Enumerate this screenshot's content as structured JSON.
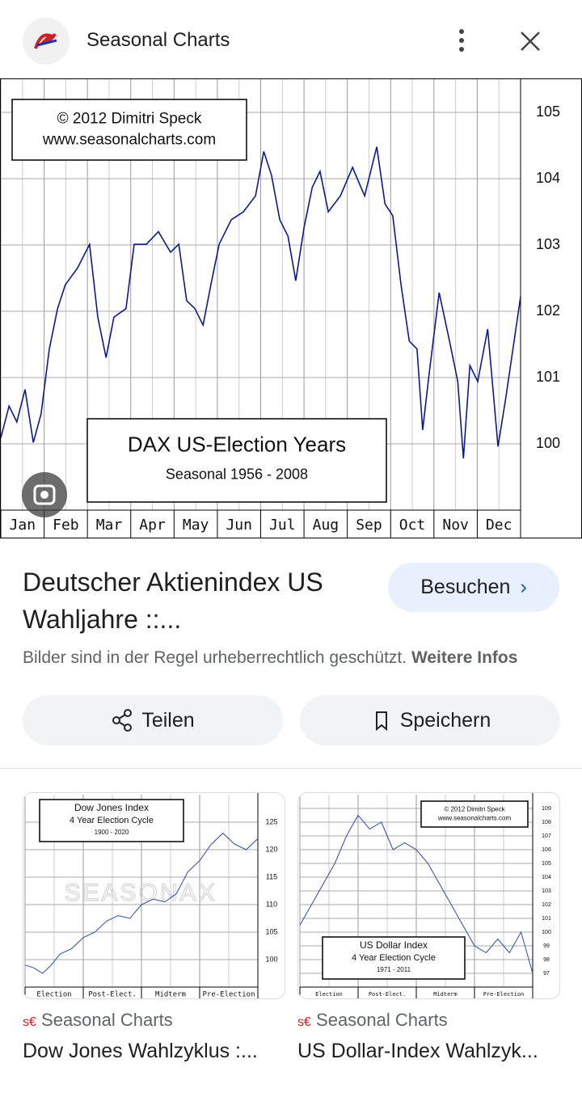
{
  "header": {
    "title": "Seasonal Charts"
  },
  "chart_data": [
    {
      "type": "line",
      "annotations": [
        "© 2012  Dimitri Speck",
        "www.seasonalcharts.com"
      ],
      "title": "DAX US-Election Years",
      "subtitle": "Seasonal 1956 - 2008",
      "categories": [
        "Jan",
        "Feb",
        "Mar",
        "Apr",
        "May",
        "Jun",
        "Jul",
        "Aug",
        "Sep",
        "Oct",
        "Nov",
        "Dec"
      ],
      "x": [
        0,
        0.19,
        0.37,
        0.56,
        0.75,
        0.93,
        1.12,
        1.31,
        1.49,
        1.77,
        2.05,
        2.24,
        2.43,
        2.61,
        2.89,
        3.08,
        3.36,
        3.64,
        3.92,
        4.11,
        4.29,
        4.48,
        4.67,
        4.85,
        5.04,
        5.32,
        5.6,
        5.88,
        6.07,
        6.25,
        6.44,
        6.63,
        6.81,
        7,
        7.19,
        7.37,
        7.56,
        7.84,
        8.12,
        8.4,
        8.68,
        8.87,
        9.05,
        9.24,
        9.43,
        9.61,
        9.74,
        9.89,
        10.12,
        10.36,
        10.55,
        10.68,
        10.83,
        11.01,
        11.24,
        11.48,
        11.66,
        11.85,
        12
      ],
      "values": [
        100.09,
        100.57,
        100.33,
        100.82,
        100.02,
        100.45,
        101.43,
        102.04,
        102.4,
        102.65,
        103.01,
        101.91,
        101.3,
        101.91,
        102.04,
        103.01,
        103.01,
        103.2,
        102.89,
        103.01,
        102.16,
        102.04,
        101.79,
        102.4,
        103.01,
        103.38,
        103.5,
        103.74,
        104.41,
        104.05,
        103.38,
        103.13,
        102.46,
        103.26,
        103.87,
        104.11,
        103.5,
        103.74,
        104.17,
        103.74,
        104.48,
        103.62,
        103.44,
        102.4,
        101.55,
        101.43,
        100.21,
        101.06,
        102.28,
        101.55,
        100.94,
        99.78,
        101.18,
        100.94,
        101.73,
        99.96,
        100.7,
        101.55,
        102.22
      ],
      "color": "#0a1a8c",
      "xlim": [
        0,
        12
      ],
      "ylim": [
        99,
        105.5
      ],
      "yticks": [
        100,
        101,
        102,
        103,
        104,
        105
      ],
      "grid": true
    },
    {
      "type": "line",
      "title": "Dow Jones Index",
      "subtitle": "4 Year Election Cycle",
      "note": "1900 - 2020",
      "watermark": "SEASONAX",
      "categories": [
        "Election",
        "Post-Elect.",
        "Midterm",
        "Pre-Election"
      ],
      "x": [
        0,
        0.15,
        0.3,
        0.45,
        0.6,
        0.8,
        1,
        1.2,
        1.4,
        1.6,
        1.8,
        2,
        2.2,
        2.4,
        2.6,
        2.8,
        3,
        3.2,
        3.4,
        3.6,
        3.8,
        4
      ],
      "values": [
        99,
        98.5,
        97.5,
        99,
        101,
        102,
        104,
        105,
        107,
        108,
        107.5,
        110,
        111,
        110.5,
        112,
        116,
        118,
        121,
        123,
        121,
        120,
        122
      ],
      "color": "#2a4aa8",
      "xlim": [
        0,
        4
      ],
      "ylim": [
        95,
        130
      ],
      "yticks": [
        100,
        105,
        110,
        115,
        120,
        125
      ],
      "grid": true
    },
    {
      "type": "line",
      "annotations": [
        "© 2012  Dimitri Speck",
        "www.seasonalcharts.com"
      ],
      "title": "US Dollar Index",
      "subtitle": "4 Year Election Cycle",
      "note": "1971 - 2011",
      "categories": [
        "Election",
        "Post-Elect.",
        "Midterm",
        "Pre-Election"
      ],
      "x": [
        0,
        0.2,
        0.4,
        0.6,
        0.8,
        1,
        1.2,
        1.4,
        1.6,
        1.8,
        2,
        2.2,
        2.4,
        2.6,
        2.8,
        3,
        3.2,
        3.4,
        3.6,
        3.8,
        4
      ],
      "values": [
        100.5,
        102,
        103.5,
        105,
        107,
        108.5,
        107.5,
        108,
        106,
        106.5,
        106,
        105,
        103.5,
        102,
        100.5,
        99,
        98.5,
        99.5,
        98.5,
        100,
        97
      ],
      "color": "#2a4aa8",
      "xlim": [
        0,
        4
      ],
      "ylim": [
        96,
        110
      ],
      "yticks": [
        97,
        98,
        99,
        100,
        101,
        102,
        103,
        104,
        105,
        106,
        107,
        108,
        109
      ],
      "grid": true
    }
  ],
  "result": {
    "title": "Deutscher Aktienindex US Wahljahre ::...",
    "visit": "Besuchen",
    "notice": "Bilder sind in der Regel urheberrechtlich geschützt.",
    "more": "Weitere Infos",
    "share": "Teilen",
    "save": "Speichern"
  },
  "related": [
    {
      "source": "Seasonal Charts",
      "title": "Dow Jones Wahlzyklus :..."
    },
    {
      "source": "Seasonal Charts",
      "title": "US Dollar-Index Wahlzyk..."
    }
  ]
}
